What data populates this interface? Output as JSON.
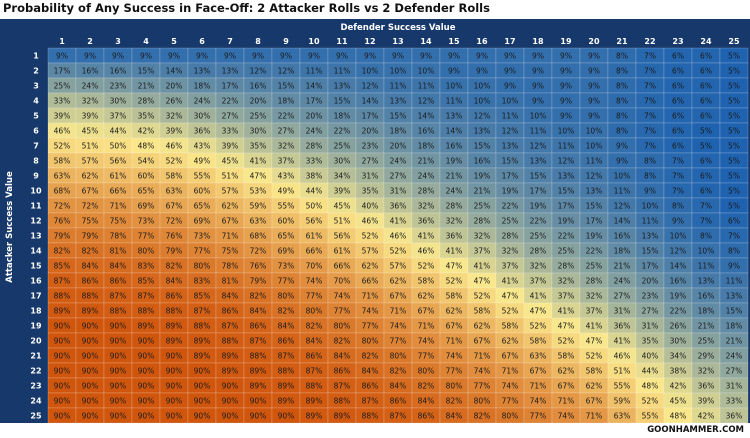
{
  "title": "Probability of Any Success in Face-Off: 2 Attacker Rolls vs 2 Defender Rolls",
  "watermark": "GOONHAMMER.COM",
  "chart_data": {
    "type": "heatmap",
    "title": "Probability of Any Success in Face-Off: 2 Attacker Rolls vs 2 Defender Rolls",
    "xlabel": "Defender Success Value",
    "ylabel": "Attacker Success Value",
    "x": [
      1,
      2,
      3,
      4,
      5,
      6,
      7,
      8,
      9,
      10,
      11,
      12,
      13,
      14,
      15,
      16,
      17,
      18,
      19,
      20,
      21,
      22,
      23,
      24,
      25
    ],
    "y": [
      1,
      2,
      3,
      4,
      5,
      6,
      7,
      8,
      9,
      10,
      11,
      12,
      13,
      14,
      15,
      16,
      17,
      18,
      19,
      20,
      21,
      22,
      23,
      24,
      25
    ],
    "value_suffix": "%",
    "colorscale": [
      "#1e62b0",
      "#fbe98c",
      "#d1560d"
    ],
    "values": [
      [
        9,
        9,
        9,
        9,
        9,
        9,
        9,
        9,
        9,
        9,
        9,
        9,
        9,
        9,
        9,
        9,
        9,
        9,
        9,
        9,
        8,
        7,
        6,
        6,
        5
      ],
      [
        17,
        16,
        16,
        15,
        14,
        13,
        13,
        12,
        12,
        11,
        11,
        10,
        10,
        10,
        9,
        9,
        9,
        9,
        9,
        9,
        8,
        7,
        6,
        6,
        5
      ],
      [
        25,
        24,
        23,
        21,
        20,
        18,
        17,
        16,
        15,
        14,
        13,
        12,
        11,
        11,
        10,
        10,
        9,
        9,
        9,
        9,
        8,
        7,
        6,
        6,
        5
      ],
      [
        33,
        32,
        30,
        28,
        26,
        24,
        22,
        20,
        18,
        17,
        15,
        14,
        13,
        12,
        11,
        10,
        10,
        9,
        9,
        9,
        8,
        7,
        6,
        6,
        5
      ],
      [
        39,
        39,
        37,
        35,
        32,
        30,
        27,
        25,
        22,
        20,
        18,
        17,
        15,
        14,
        13,
        12,
        11,
        10,
        9,
        9,
        8,
        7,
        6,
        6,
        5
      ],
      [
        46,
        45,
        44,
        42,
        39,
        36,
        33,
        30,
        27,
        24,
        22,
        20,
        18,
        16,
        14,
        13,
        12,
        11,
        10,
        10,
        8,
        7,
        6,
        5,
        5
      ],
      [
        52,
        51,
        50,
        48,
        46,
        43,
        39,
        35,
        32,
        28,
        25,
        23,
        20,
        18,
        16,
        15,
        13,
        12,
        11,
        10,
        9,
        7,
        6,
        5,
        5
      ],
      [
        58,
        57,
        56,
        54,
        52,
        49,
        45,
        41,
        37,
        33,
        30,
        27,
        24,
        21,
        19,
        16,
        15,
        13,
        12,
        11,
        9,
        8,
        7,
        6,
        5
      ],
      [
        63,
        62,
        61,
        60,
        58,
        55,
        51,
        47,
        43,
        38,
        34,
        31,
        27,
        24,
        21,
        19,
        17,
        15,
        13,
        12,
        10,
        8,
        7,
        6,
        5
      ],
      [
        68,
        67,
        66,
        65,
        63,
        60,
        57,
        53,
        49,
        44,
        39,
        35,
        31,
        28,
        24,
        21,
        19,
        17,
        15,
        13,
        11,
        9,
        7,
        6,
        5
      ],
      [
        72,
        72,
        71,
        69,
        67,
        65,
        62,
        59,
        55,
        50,
        45,
        40,
        36,
        32,
        28,
        25,
        22,
        19,
        17,
        15,
        12,
        10,
        8,
        7,
        5
      ],
      [
        76,
        75,
        75,
        73,
        72,
        69,
        67,
        63,
        60,
        56,
        51,
        46,
        41,
        36,
        32,
        28,
        25,
        22,
        19,
        17,
        14,
        11,
        9,
        7,
        6
      ],
      [
        79,
        79,
        78,
        77,
        76,
        73,
        71,
        68,
        65,
        61,
        56,
        52,
        46,
        41,
        36,
        32,
        28,
        25,
        22,
        19,
        16,
        13,
        10,
        8,
        7
      ],
      [
        82,
        82,
        81,
        80,
        79,
        77,
        75,
        72,
        69,
        66,
        61,
        57,
        52,
        46,
        41,
        37,
        32,
        28,
        25,
        22,
        18,
        15,
        12,
        10,
        8
      ],
      [
        85,
        84,
        84,
        83,
        82,
        80,
        78,
        76,
        73,
        70,
        66,
        62,
        57,
        52,
        47,
        41,
        37,
        32,
        28,
        25,
        21,
        17,
        14,
        11,
        9
      ],
      [
        87,
        86,
        86,
        85,
        84,
        83,
        81,
        79,
        77,
        74,
        70,
        66,
        62,
        58,
        52,
        47,
        41,
        37,
        32,
        28,
        24,
        20,
        16,
        13,
        11
      ],
      [
        88,
        88,
        87,
        87,
        86,
        85,
        84,
        82,
        80,
        77,
        74,
        71,
        67,
        62,
        58,
        52,
        47,
        41,
        37,
        32,
        27,
        23,
        19,
        16,
        13
      ],
      [
        89,
        89,
        88,
        88,
        88,
        87,
        86,
        84,
        82,
        80,
        77,
        74,
        71,
        67,
        62,
        58,
        52,
        47,
        41,
        37,
        31,
        27,
        22,
        18,
        15
      ],
      [
        90,
        90,
        90,
        89,
        89,
        88,
        87,
        86,
        84,
        82,
        80,
        77,
        74,
        71,
        67,
        62,
        58,
        52,
        47,
        41,
        36,
        31,
        26,
        21,
        18
      ],
      [
        90,
        90,
        90,
        90,
        89,
        89,
        88,
        87,
        86,
        84,
        82,
        80,
        77,
        74,
        71,
        67,
        62,
        58,
        52,
        47,
        41,
        35,
        30,
        25,
        21
      ],
      [
        90,
        90,
        90,
        90,
        90,
        89,
        89,
        88,
        87,
        86,
        84,
        82,
        80,
        77,
        74,
        71,
        67,
        63,
        58,
        52,
        46,
        40,
        34,
        29,
        24
      ],
      [
        90,
        90,
        90,
        90,
        90,
        90,
        89,
        89,
        88,
        87,
        86,
        84,
        82,
        80,
        77,
        74,
        71,
        67,
        62,
        58,
        51,
        44,
        38,
        32,
        27
      ],
      [
        90,
        90,
        90,
        90,
        90,
        90,
        90,
        89,
        89,
        88,
        87,
        86,
        84,
        82,
        80,
        77,
        74,
        71,
        67,
        62,
        55,
        48,
        42,
        36,
        31
      ],
      [
        90,
        90,
        90,
        90,
        90,
        90,
        90,
        90,
        89,
        89,
        88,
        87,
        86,
        84,
        82,
        80,
        77,
        74,
        71,
        67,
        59,
        52,
        45,
        39,
        33
      ],
      [
        90,
        90,
        90,
        90,
        90,
        90,
        90,
        90,
        90,
        89,
        89,
        88,
        87,
        86,
        84,
        82,
        80,
        77,
        74,
        71,
        63,
        55,
        48,
        42,
        36
      ]
    ]
  }
}
